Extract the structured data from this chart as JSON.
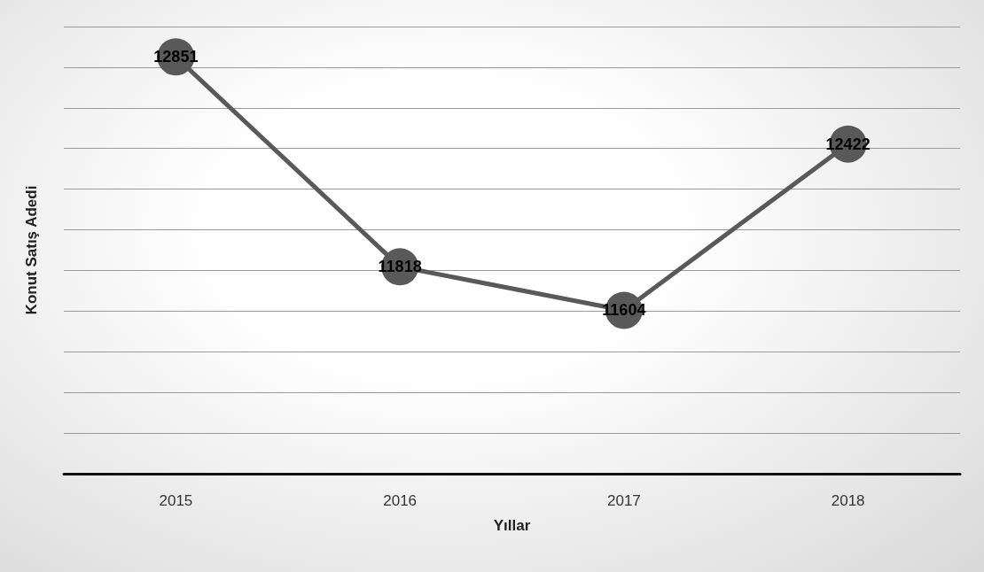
{
  "chart_data": {
    "type": "line",
    "xlabel": "Yıllar",
    "ylabel": "Konut Satış Adedi",
    "categories": [
      "2015",
      "2016",
      "2017",
      "2018"
    ],
    "series": [
      {
        "color": "#595959",
        "values": [
          12851,
          11818,
          11604,
          12422
        ]
      }
    ],
    "ylim": [
      10800,
      13000
    ],
    "yticks": [
      {
        "value": 10800,
        "label": null
      },
      {
        "value": 11000,
        "label": null
      },
      {
        "value": 11200,
        "label": null
      },
      {
        "value": 11400,
        "label": null
      },
      {
        "value": 11600,
        "label": null
      },
      {
        "value": 11800,
        "label": null
      },
      {
        "value": 12000,
        "label": null
      },
      {
        "value": 12200,
        "label": null
      },
      {
        "value": 12400,
        "label": null
      },
      {
        "value": 12600,
        "label": null
      },
      {
        "value": 12800,
        "label": null
      },
      {
        "value": 13000,
        "label": null
      }
    ],
    "tick_labels": "x",
    "grid": "y",
    "marker": "circle",
    "line_style": "solid",
    "data_labels": true
  }
}
